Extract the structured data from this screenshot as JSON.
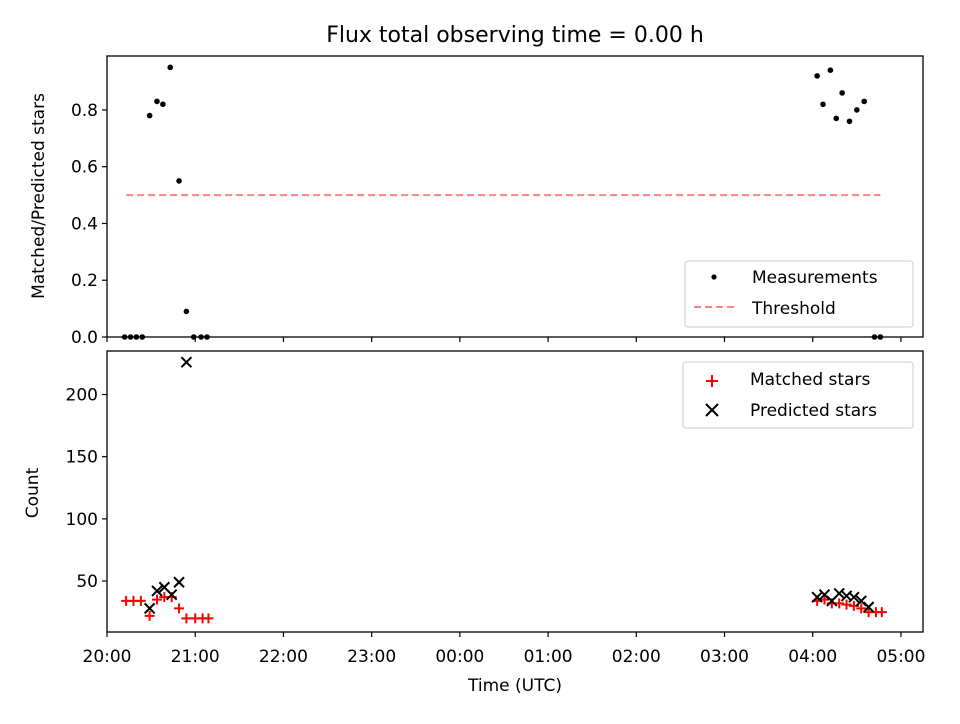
{
  "title": "Flux total observing time = 0.00 h",
  "colors": {
    "measurement": "#000000",
    "threshold": "#ff8080",
    "matched": "#ff0000",
    "predicted": "#000000"
  },
  "chart_data": [
    {
      "type": "scatter",
      "ylabel": "Matched/Predicted stars",
      "xlabel": "",
      "xlim": [
        "20:00",
        "05:15"
      ],
      "ylim": [
        0,
        0.99
      ],
      "yticks": [
        "0.0",
        "0.2",
        "0.4",
        "0.6",
        "0.8"
      ],
      "ytick_values": [
        0,
        0.2,
        0.4,
        0.6,
        0.8
      ],
      "legend": {
        "position": "lower right",
        "entries": [
          "Measurements",
          "Threshold"
        ]
      },
      "series": [
        {
          "name": "Measurements",
          "marker": "dot",
          "points": [
            [
              "20:12",
              0.0
            ],
            [
              "20:16",
              0.0
            ],
            [
              "20:20",
              0.0
            ],
            [
              "20:24",
              0.0
            ],
            [
              "20:29",
              0.78
            ],
            [
              "20:34",
              0.83
            ],
            [
              "20:38",
              0.82
            ],
            [
              "20:43",
              0.95
            ],
            [
              "20:49",
              0.55
            ],
            [
              "20:54",
              0.09
            ],
            [
              "20:59",
              0.0
            ],
            [
              "21:04",
              0.0
            ],
            [
              "21:08",
              0.0
            ],
            [
              "04:03",
              0.92
            ],
            [
              "04:07",
              0.82
            ],
            [
              "04:12",
              0.94
            ],
            [
              "04:16",
              0.77
            ],
            [
              "04:20",
              0.86
            ],
            [
              "04:25",
              0.76
            ],
            [
              "04:30",
              0.8
            ],
            [
              "04:35",
              0.83
            ],
            [
              "04:42",
              0.0
            ],
            [
              "04:46",
              0.0
            ]
          ]
        },
        {
          "name": "Threshold",
          "marker": "dashed-line",
          "points": [
            [
              "20:13",
              0.5
            ],
            [
              "04:46",
              0.5
            ]
          ]
        }
      ]
    },
    {
      "type": "scatter",
      "ylabel": "Count",
      "xlabel": "Time (UTC)",
      "xlim": [
        "20:00",
        "05:15"
      ],
      "ylim": [
        9,
        235
      ],
      "yticks": [
        "50",
        "100",
        "150",
        "200"
      ],
      "ytick_values": [
        50,
        100,
        150,
        200
      ],
      "xticks": [
        "20:00",
        "21:00",
        "22:00",
        "23:00",
        "00:00",
        "01:00",
        "02:00",
        "03:00",
        "04:00",
        "05:00"
      ],
      "legend": {
        "position": "upper right",
        "entries": [
          "Matched stars",
          "Predicted stars"
        ]
      },
      "series": [
        {
          "name": "Matched stars",
          "marker": "plus",
          "points": [
            [
              "20:13",
              34
            ],
            [
              "20:18",
              34
            ],
            [
              "20:23",
              34
            ],
            [
              "20:29",
              22
            ],
            [
              "20:34",
              35
            ],
            [
              "20:39",
              37
            ],
            [
              "20:44",
              37
            ],
            [
              "20:49",
              28
            ],
            [
              "20:54",
              20
            ],
            [
              "21:00",
              20
            ],
            [
              "21:05",
              20
            ],
            [
              "21:09",
              20
            ],
            [
              "04:03",
              34
            ],
            [
              "04:08",
              35
            ],
            [
              "04:13",
              32
            ],
            [
              "04:18",
              32
            ],
            [
              "04:23",
              31
            ],
            [
              "04:28",
              30
            ],
            [
              "04:33",
              28
            ],
            [
              "04:38",
              25
            ],
            [
              "04:43",
              25
            ],
            [
              "04:47",
              25
            ]
          ]
        },
        {
          "name": "Predicted stars",
          "marker": "x",
          "points": [
            [
              "20:29",
              28
            ],
            [
              "20:34",
              42
            ],
            [
              "20:39",
              45
            ],
            [
              "20:44",
              39
            ],
            [
              "20:49",
              49
            ],
            [
              "20:54",
              226
            ],
            [
              "04:03",
              37
            ],
            [
              "04:08",
              39
            ],
            [
              "04:13",
              34
            ],
            [
              "04:18",
              40
            ],
            [
              "04:23",
              38
            ],
            [
              "04:28",
              37
            ],
            [
              "04:33",
              34
            ],
            [
              "04:38",
              29
            ]
          ]
        }
      ]
    }
  ]
}
